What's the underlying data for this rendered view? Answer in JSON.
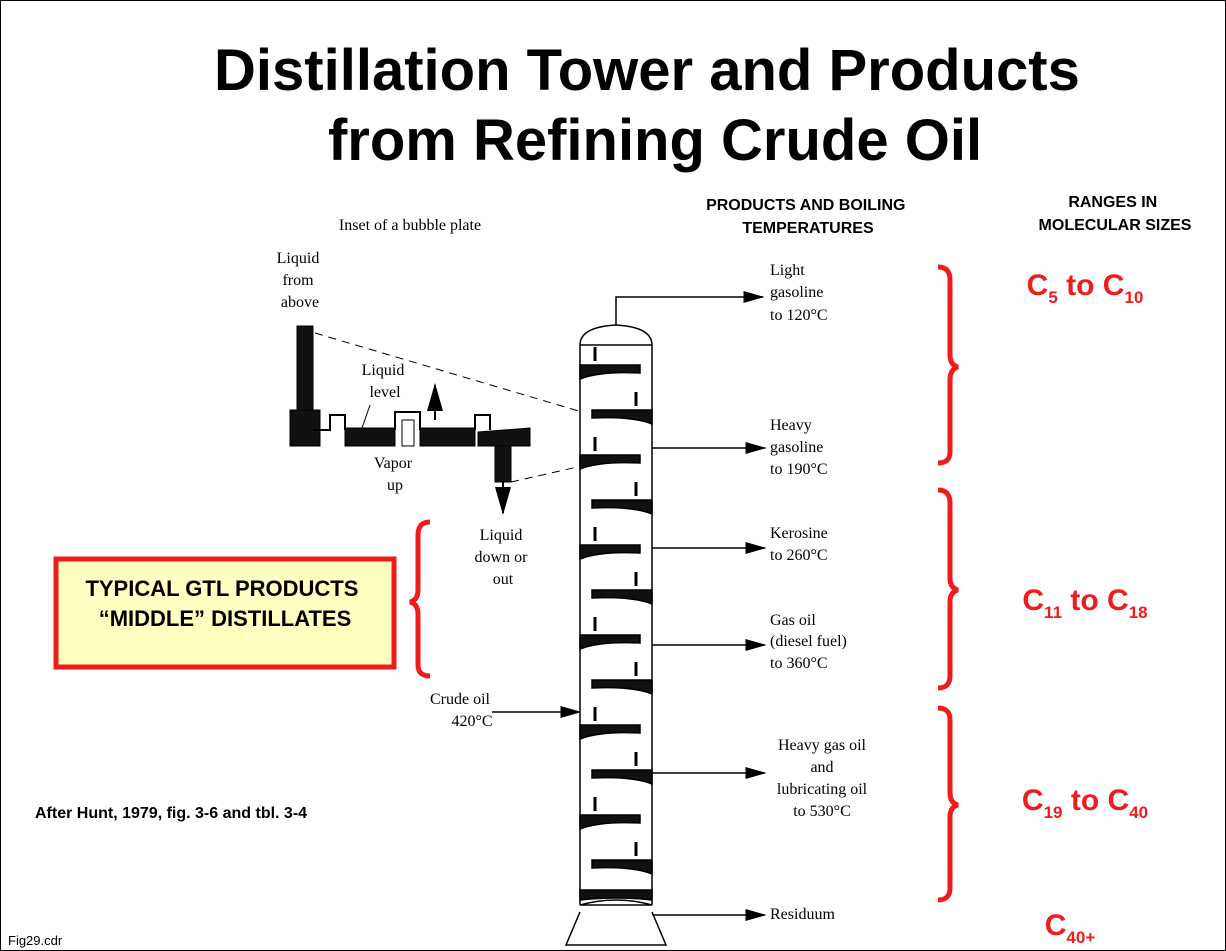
{
  "title": [
    "Distillation Tower and Products",
    "from Refining Crude Oil"
  ],
  "products_header": [
    "PRODUCTS AND BOILING",
    "TEMPERATURES"
  ],
  "ranges_header": [
    "RANGES IN",
    "MOLECULAR SIZES"
  ],
  "inset": {
    "title": "Inset of a bubble plate",
    "labels": [
      [
        "Liquid",
        "from",
        "above"
      ],
      [
        "Liquid",
        "level"
      ],
      [
        "Vapor",
        "up"
      ],
      [
        "Liquid",
        "down or",
        "out"
      ]
    ]
  },
  "products": [
    [
      "Light",
      "gasoline",
      "to 120°C"
    ],
    [
      "Heavy",
      "gasoline",
      "to 190°C"
    ],
    [
      "Kerosine",
      "to 260°C"
    ],
    [
      "Gas oil",
      "(diesel fuel)",
      "to 360°C"
    ],
    [
      "Heavy gas oil",
      "and",
      "lubricating oil",
      "to 530°C"
    ],
    [
      "Residuum"
    ]
  ],
  "feed": [
    "Crude oil",
    "420°C"
  ],
  "ranges": [
    [
      "C",
      "5",
      " to C",
      "10"
    ],
    [
      "C",
      "11",
      " to C",
      "18"
    ],
    [
      "C",
      "19",
      " to C",
      "40"
    ],
    [
      "C",
      "40+"
    ]
  ],
  "callout": [
    "TYPICAL GTL PRODUCTS",
    "“MIDDLE” DISTILLATES"
  ],
  "credit": "After Hunt, 1979, fig. 3-6 and tbl. 3-4",
  "file": "Fig29.cdr"
}
